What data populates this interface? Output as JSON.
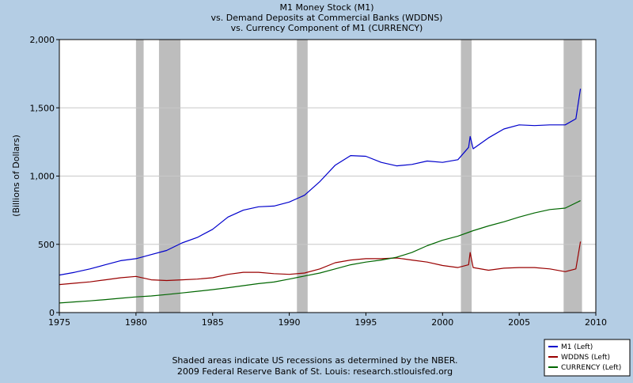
{
  "chart_data": {
    "type": "line",
    "title": [
      "M1 Money Stock (M1)",
      "vs.  Demand Deposits at Commercial Banks (WDDNS)",
      "vs.  Currency Component of M1 (CURRENCY)"
    ],
    "ylabel": "(Billions of Dollars)",
    "xlabel": "",
    "xlim": [
      1975,
      2010
    ],
    "ylim": [
      0,
      2000
    ],
    "x_ticks": [
      1975,
      1980,
      1985,
      1990,
      1995,
      2000,
      2005,
      2010
    ],
    "x_tick_labels": [
      "1975",
      "1980",
      "1985",
      "1990",
      "1995",
      "2000",
      "2005",
      "2010"
    ],
    "y_ticks": [
      0,
      500,
      1000,
      1500,
      2000
    ],
    "y_tick_labels": [
      "0",
      "500",
      "1,000",
      "1,500",
      "2,000"
    ],
    "grid": true,
    "legend_position": "bottom-right",
    "recessions": [
      [
        1980.0,
        1980.5
      ],
      [
        1981.5,
        1982.9
      ],
      [
        1990.5,
        1991.2
      ],
      [
        2001.2,
        2001.9
      ],
      [
        2007.9,
        2009.1
      ]
    ],
    "series": [
      {
        "name": "M1 (Left)",
        "color": "#0000cc",
        "x": [
          1975,
          1976,
          1977,
          1978,
          1979,
          1980,
          1981,
          1982,
          1983,
          1984,
          1985,
          1986,
          1987,
          1988,
          1989,
          1990,
          1991,
          1992,
          1993,
          1994,
          1995,
          1996,
          1997,
          1998,
          1999,
          2000,
          2001,
          2001.7,
          2001.8,
          2002,
          2003,
          2004,
          2005,
          2006,
          2007,
          2008,
          2008.7,
          2009.0
        ],
        "y": [
          275,
          295,
          320,
          350,
          380,
          395,
          425,
          455,
          510,
          550,
          610,
          700,
          750,
          775,
          780,
          810,
          860,
          960,
          1080,
          1150,
          1145,
          1100,
          1075,
          1085,
          1110,
          1100,
          1120,
          1210,
          1290,
          1200,
          1280,
          1345,
          1375,
          1370,
          1375,
          1375,
          1420,
          1640
        ]
      },
      {
        "name": "WDDNS (Left)",
        "color": "#990000",
        "x": [
          1975,
          1976,
          1977,
          1978,
          1979,
          1980,
          1981,
          1982,
          1983,
          1984,
          1985,
          1986,
          1987,
          1988,
          1989,
          1990,
          1991,
          1992,
          1993,
          1994,
          1995,
          1996,
          1997,
          1998,
          1999,
          2000,
          2001,
          2001.7,
          2001.8,
          2002,
          2003,
          2004,
          2005,
          2006,
          2007,
          2008,
          2008.7,
          2009.0
        ],
        "y": [
          205,
          215,
          225,
          240,
          255,
          265,
          240,
          235,
          240,
          245,
          255,
          280,
          295,
          295,
          285,
          280,
          290,
          320,
          365,
          385,
          395,
          395,
          400,
          385,
          370,
          345,
          330,
          350,
          440,
          330,
          310,
          325,
          330,
          330,
          320,
          300,
          320,
          520
        ]
      },
      {
        "name": "CURRENCY (Left)",
        "color": "#006600",
        "x": [
          1975,
          1976,
          1977,
          1978,
          1979,
          1980,
          1981,
          1982,
          1983,
          1984,
          1985,
          1986,
          1987,
          1988,
          1989,
          1990,
          1991,
          1992,
          1993,
          1994,
          1995,
          1996,
          1997,
          1998,
          1999,
          2000,
          2001,
          2002,
          2003,
          2004,
          2005,
          2006,
          2007,
          2008,
          2009.0
        ],
        "y": [
          70,
          78,
          86,
          95,
          105,
          115,
          122,
          132,
          144,
          156,
          168,
          182,
          197,
          212,
          224,
          245,
          268,
          290,
          320,
          350,
          370,
          385,
          405,
          440,
          490,
          530,
          560,
          600,
          635,
          665,
          700,
          730,
          755,
          765,
          820
        ]
      }
    ]
  },
  "footer": {
    "line1": "Shaded areas indicate US recessions as determined by the NBER.",
    "line2": "2009 Federal Reserve Bank of St. Louis: research.stlouisfed.org"
  }
}
